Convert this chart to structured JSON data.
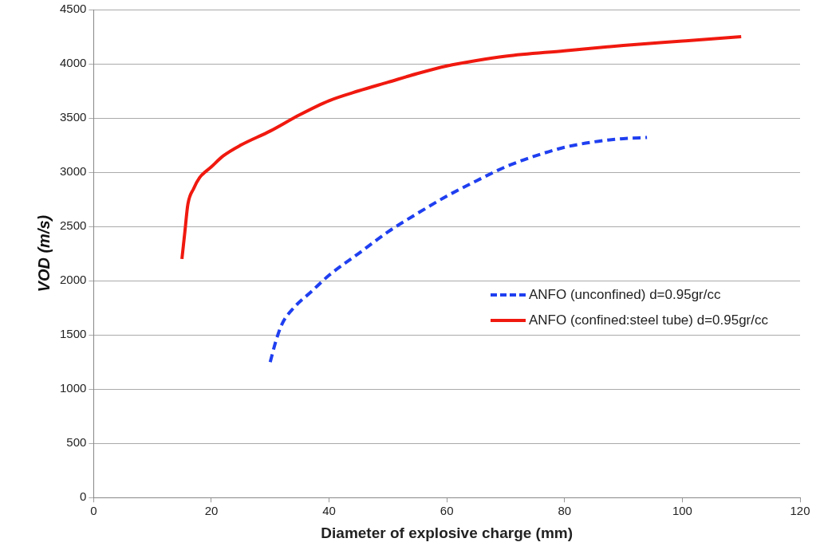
{
  "chart_data": {
    "type": "line",
    "xlabel": "Diameter of explosive charge (mm)",
    "ylabel": "VOD (m/s)",
    "xlim": [
      0,
      120
    ],
    "xticks": [
      0,
      20,
      40,
      60,
      80,
      100,
      120
    ],
    "ylim": [
      0,
      4500
    ],
    "yticks": [
      0,
      500,
      1000,
      1500,
      2000,
      2500,
      3000,
      3500,
      4000,
      4500
    ],
    "grid": "y",
    "legend": "right",
    "marker": "none",
    "series": [
      {
        "name": "ANFO (unconfined) d=0.95gr/cc",
        "color": "#1f3ff0",
        "line_style": "dashed",
        "x": [
          30,
          31,
          32,
          34,
          37,
          40,
          45,
          50,
          55,
          60,
          65,
          70,
          75,
          80,
          85,
          90,
          94
        ],
        "values": [
          1250,
          1450,
          1600,
          1750,
          1900,
          2050,
          2250,
          2450,
          2620,
          2780,
          2920,
          3050,
          3150,
          3230,
          3280,
          3310,
          3320
        ]
      },
      {
        "name": "ANFO (confined:steel tube) d=0.95gr/cc",
        "color": "#f0190f",
        "line_style": "solid",
        "x": [
          15,
          15.5,
          16,
          17,
          18,
          20,
          22,
          25,
          30,
          35,
          40,
          45,
          50,
          55,
          60,
          65,
          70,
          80,
          90,
          100,
          110
        ],
        "values": [
          2200,
          2450,
          2700,
          2850,
          2950,
          3050,
          3150,
          3250,
          3380,
          3530,
          3660,
          3750,
          3830,
          3910,
          3980,
          4030,
          4070,
          4120,
          4170,
          4210,
          4250
        ]
      }
    ]
  }
}
